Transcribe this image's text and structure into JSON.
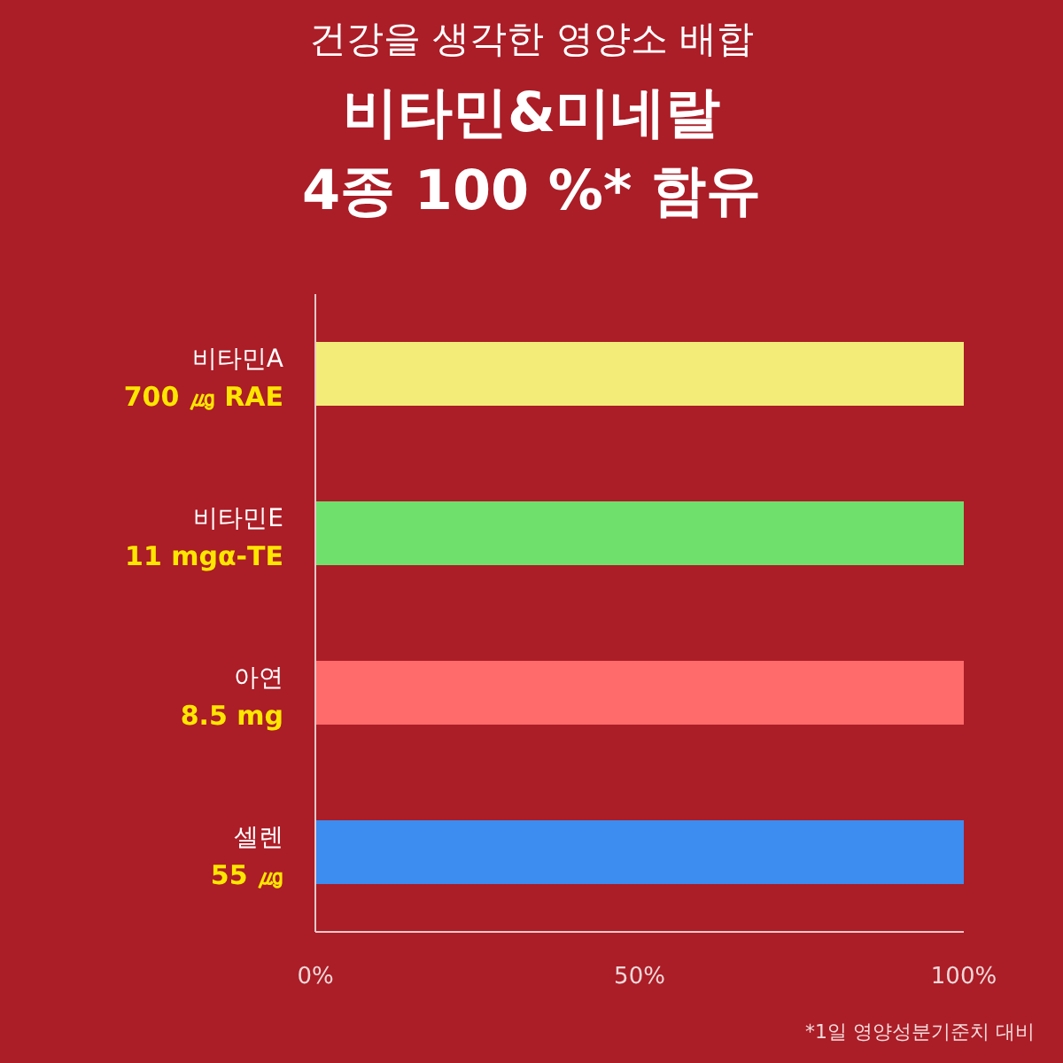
{
  "chart_data": {
    "type": "bar",
    "orientation": "horizontal",
    "subtitle": "건강을 생각한 영양소 배합",
    "title": "비타민&미네랄\n4종 100 %* 함유",
    "categories": [
      "비타민A\n700 ㎍ RAE",
      "비타민E\n11 mgα-TE",
      "아연\n8.5 mg",
      "셀렌\n55 ㎍"
    ],
    "values": [
      100,
      100,
      100,
      100
    ],
    "colors": [
      "#f4ec78",
      "#6fe06c",
      "#ff6b6b",
      "#3d8cf0"
    ],
    "xlim": [
      0,
      100
    ],
    "xticks": [
      {
        "value": 0,
        "label": "0%"
      },
      {
        "value": 50,
        "label": "50%"
      },
      {
        "value": 100,
        "label": "100%"
      }
    ],
    "annotations": [
      "*1일 영양성분기준치 대비"
    ]
  }
}
